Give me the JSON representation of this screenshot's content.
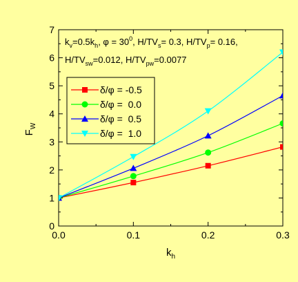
{
  "chart_data": {
    "type": "line",
    "background": "#ffffa0",
    "annotation": {
      "line1": {
        "k": "k",
        "k_sub": "v",
        "a": "=0.5k",
        "a_sub": "h",
        "b": ", φ = 30",
        "b_sup": "0",
        "c": ", H/TV",
        "c_sub": "s",
        "d": "= 0.3, H/TV",
        "d_sub": "p",
        "e": "= 0.16,"
      },
      "line2": {
        "a": "H/TV",
        "a_sub": "sw",
        "b": "=0.012, H/TV",
        "b_sub": "pw",
        "c": "=0.0077"
      }
    },
    "xlabel": {
      "main": "k",
      "sub": "h"
    },
    "ylabel": {
      "main": "F",
      "sub": "W"
    },
    "xlim": [
      0,
      0.3
    ],
    "ylim": [
      0,
      7
    ],
    "xticks": [
      "0.0",
      "0.1",
      "0.2",
      "0.3"
    ],
    "yticks": [
      "0",
      "1",
      "2",
      "3",
      "4",
      "5",
      "6",
      "7"
    ],
    "grid": false,
    "legend_position": "upper-left",
    "x": [
      0,
      0.1,
      0.2,
      0.3
    ],
    "series": [
      {
        "name": "δ/φ = -0.5",
        "color": "#ff0000",
        "marker": "square",
        "values": [
          1.0,
          1.55,
          2.15,
          2.82
        ]
      },
      {
        "name": "δ/φ =  0.0",
        "color": "#00ff00",
        "marker": "circle",
        "values": [
          1.0,
          1.78,
          2.62,
          3.66
        ]
      },
      {
        "name": "δ/φ =  0.5",
        "color": "#0000ff",
        "marker": "triangle-up",
        "values": [
          1.0,
          2.06,
          3.22,
          4.65
        ]
      },
      {
        "name": "δ/φ =  1.0",
        "color": "#00ffff",
        "marker": "triangle-down",
        "values": [
          1.0,
          2.47,
          4.1,
          6.2
        ]
      }
    ]
  }
}
